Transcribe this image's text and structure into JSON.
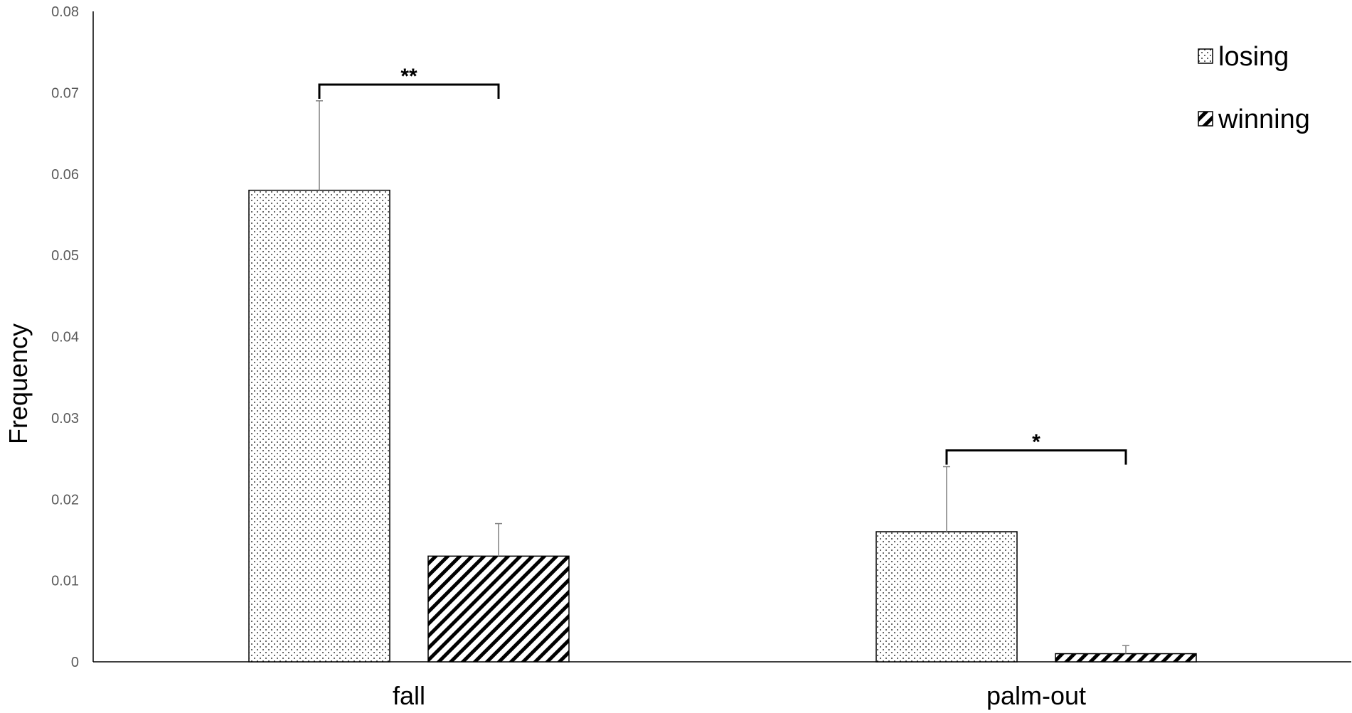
{
  "chart_data": {
    "type": "bar",
    "title": "",
    "xlabel": "",
    "ylabel": "Frequency",
    "ylim": [
      0,
      0.08
    ],
    "yticks": [
      "0",
      "0.01",
      "0.02",
      "0.03",
      "0.04",
      "0.05",
      "0.06",
      "0.07",
      "0.08"
    ],
    "categories": [
      "fall",
      "palm-out"
    ],
    "series": [
      {
        "name": "losing",
        "pattern": "dots",
        "values": [
          0.058,
          0.016
        ],
        "error_upper": [
          0.069,
          0.024
        ]
      },
      {
        "name": "winning",
        "pattern": "diagonal-hatch",
        "values": [
          0.013,
          0.001
        ],
        "error_upper": [
          0.017,
          0.002
        ]
      }
    ],
    "significance": [
      {
        "category": "fall",
        "label": "**",
        "bracket_y": 0.071
      },
      {
        "category": "palm-out",
        "label": "*",
        "bracket_y": 0.026
      }
    ],
    "legend_position": "top-right",
    "grid": false,
    "colors": {
      "axis": "#000000",
      "tick_text": "#595959",
      "bar_outline": "#000000",
      "error_bar": "#7f7f7f"
    }
  }
}
